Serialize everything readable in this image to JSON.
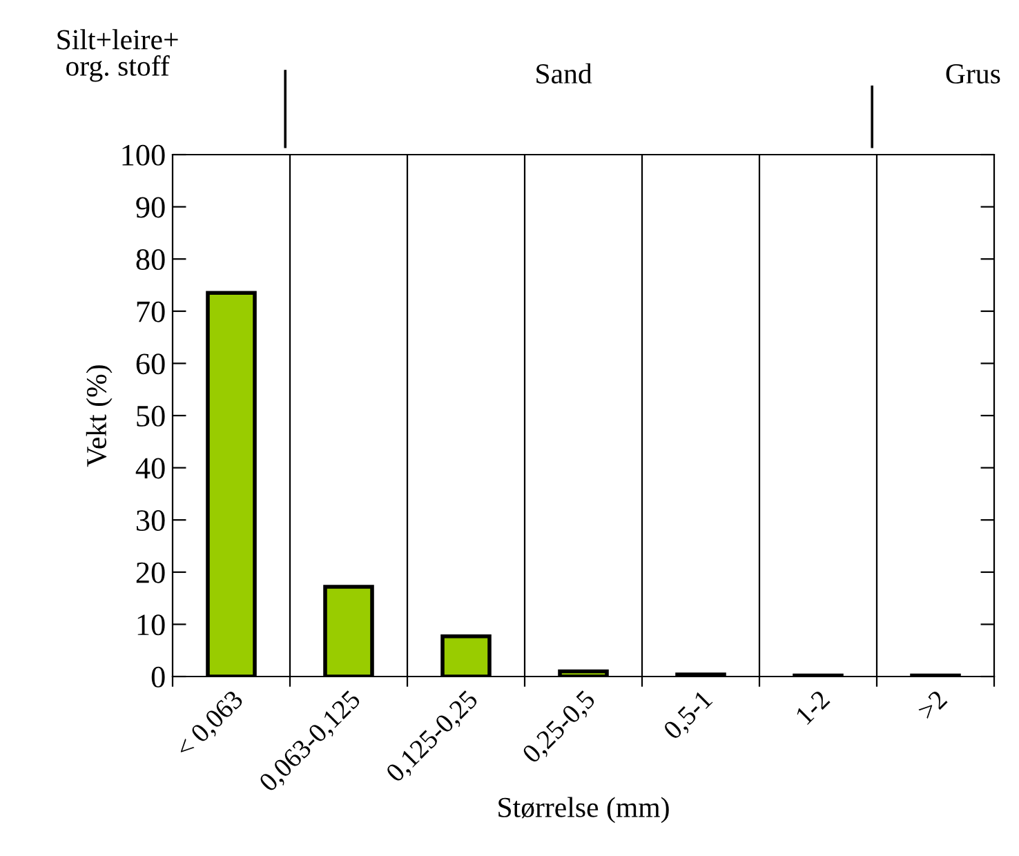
{
  "chart_data": {
    "type": "bar",
    "xlabel": "Størrelse (mm)",
    "ylabel": "Vekt (%)",
    "categories": [
      "< 0,063",
      "0,063-0,125",
      "0,125-0,25",
      "0,25-0,5",
      "0,5-1",
      "1-2",
      ">2"
    ],
    "values": [
      73.5,
      17.2,
      7.7,
      1.0,
      0.4,
      0.2,
      0.2
    ],
    "color": "#99cc00",
    "ylim": [
      0,
      100
    ],
    "yticks": [
      0,
      10,
      20,
      30,
      40,
      50,
      60,
      70,
      80,
      90,
      100
    ],
    "grid": "x",
    "legend": false,
    "annotations": [
      "Silt+leire+\norg. stoff",
      "Sand",
      "Grus"
    ]
  }
}
